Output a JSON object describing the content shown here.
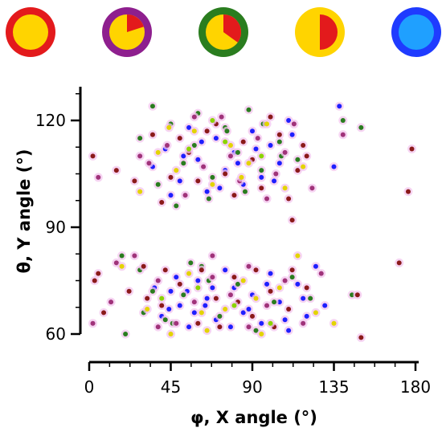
{
  "chart_data": {
    "type": "scatter",
    "xlabel": "φ, X angle (°)",
    "ylabel": "θ, Y angle (°)",
    "xlim": [
      0,
      180
    ],
    "ylim": [
      60,
      120
    ],
    "x_ticks": [
      "0",
      "45",
      "90",
      "135",
      "180"
    ],
    "y_ticks": [
      "60",
      "90",
      "120"
    ],
    "grid": false,
    "legend": {
      "placement": "top",
      "markers": [
        {
          "ring_color": "#e31a1c",
          "fill_color": "#ffd400",
          "red_fraction": 0.0
        },
        {
          "ring_color": "#8e1f8e",
          "fill_color": "#ffd400",
          "red_fraction": 0.2
        },
        {
          "ring_color": "#2a7d1f",
          "fill_color": "#ffd400",
          "red_fraction": 0.35
        },
        {
          "ring_color": "#ffd400",
          "fill_color": "#ffd400",
          "red_fraction": 0.5
        },
        {
          "ring_color": "#1f3bff",
          "fill_color": "#1fa0ff",
          "red_fraction": 0.0
        }
      ]
    },
    "series": [
      {
        "color": "#1f1fff",
        "points": [
          [
            40,
            65
          ],
          [
            45,
            72
          ],
          [
            50,
            68
          ],
          [
            55,
            62
          ],
          [
            60,
            75
          ],
          [
            65,
            70
          ],
          [
            70,
            64
          ],
          [
            75,
            78
          ],
          [
            80,
            73
          ],
          [
            85,
            66
          ],
          [
            90,
            71
          ],
          [
            95,
            63
          ],
          [
            100,
            77
          ],
          [
            105,
            69
          ],
          [
            110,
            61
          ],
          [
            115,
            74
          ],
          [
            120,
            65
          ],
          [
            125,
            79
          ],
          [
            48,
            76
          ],
          [
            58,
            66
          ],
          [
            68,
            73
          ],
          [
            78,
            62
          ],
          [
            88,
            67
          ],
          [
            98,
            74
          ],
          [
            108,
            64
          ],
          [
            118,
            70
          ],
          [
            35,
            107
          ],
          [
            42,
            112
          ],
          [
            50,
            103
          ],
          [
            55,
            118
          ],
          [
            60,
            109
          ],
          [
            65,
            100
          ],
          [
            70,
            115
          ],
          [
            75,
            106
          ],
          [
            80,
            111
          ],
          [
            85,
            102
          ],
          [
            90,
            117
          ],
          [
            95,
            104
          ],
          [
            100,
            113
          ],
          [
            105,
            108
          ],
          [
            110,
            120
          ],
          [
            138,
            124
          ],
          [
            45,
            99
          ],
          [
            52,
            110
          ],
          [
            62,
            114
          ],
          [
            72,
            101
          ],
          [
            82,
            108
          ],
          [
            92,
            112
          ],
          [
            102,
            103
          ],
          [
            112,
            116
          ],
          [
            135,
            107
          ],
          [
            130,
            68
          ],
          [
            36,
            73
          ],
          [
            44,
            67
          ],
          [
            54,
            72
          ],
          [
            64,
            68
          ]
        ]
      },
      {
        "color": "#2a7d1f",
        "points": [
          [
            20,
            60
          ],
          [
            28,
            78
          ],
          [
            35,
            72
          ],
          [
            42,
            64
          ],
          [
            52,
            71
          ],
          [
            62,
            79
          ],
          [
            72,
            65
          ],
          [
            82,
            74
          ],
          [
            92,
            61
          ],
          [
            102,
            69
          ],
          [
            112,
            76
          ],
          [
            122,
            70
          ],
          [
            145,
            71
          ],
          [
            150,
            118
          ],
          [
            140,
            120
          ],
          [
            28,
            115
          ],
          [
            35,
            124
          ],
          [
            45,
            119
          ],
          [
            52,
            108
          ],
          [
            60,
            122
          ],
          [
            68,
            104
          ],
          [
            75,
            118
          ],
          [
            82,
            111
          ],
          [
            88,
            123
          ],
          [
            95,
            106
          ],
          [
            105,
            114
          ],
          [
            115,
            109
          ],
          [
            38,
            102
          ],
          [
            48,
            96
          ],
          [
            58,
            113
          ],
          [
            66,
            98
          ],
          [
            76,
            117
          ],
          [
            86,
            100
          ],
          [
            96,
            119
          ],
          [
            106,
            110
          ],
          [
            18,
            82
          ],
          [
            30,
            66
          ],
          [
            46,
            63
          ],
          [
            56,
            80
          ],
          [
            66,
            75
          ]
        ]
      },
      {
        "color": "#8b1a1a",
        "points": [
          [
            2,
            110
          ],
          [
            5,
            77
          ],
          [
            8,
            66
          ],
          [
            15,
            106
          ],
          [
            22,
            72
          ],
          [
            30,
            79
          ],
          [
            40,
            68
          ],
          [
            50,
            74
          ],
          [
            60,
            63
          ],
          [
            70,
            70
          ],
          [
            80,
            76
          ],
          [
            90,
            65
          ],
          [
            100,
            72
          ],
          [
            110,
            67
          ],
          [
            120,
            73
          ],
          [
            176,
            100
          ],
          [
            178,
            112
          ],
          [
            118,
            113
          ],
          [
            35,
            116
          ],
          [
            45,
            104
          ],
          [
            55,
            111
          ],
          [
            65,
            117
          ],
          [
            75,
            105
          ],
          [
            85,
            114
          ],
          [
            95,
            101
          ],
          [
            105,
            116
          ],
          [
            115,
            106
          ],
          [
            40,
            97
          ],
          [
            50,
            115
          ],
          [
            60,
            103
          ],
          [
            70,
            119
          ],
          [
            80,
            99
          ],
          [
            90,
            109
          ],
          [
            100,
            121
          ],
          [
            110,
            98
          ],
          [
            120,
            110
          ],
          [
            112,
            92
          ],
          [
            150,
            59
          ],
          [
            171,
            80
          ],
          [
            148,
            71
          ],
          [
            3,
            75
          ],
          [
            25,
            103
          ],
          [
            32,
            70
          ],
          [
            42,
            78
          ],
          [
            62,
            78
          ],
          [
            72,
            62
          ],
          [
            82,
            69
          ],
          [
            92,
            78
          ],
          [
            102,
            62
          ],
          [
            112,
            78
          ]
        ]
      },
      {
        "color": "#a0337a",
        "points": [
          [
            5,
            104
          ],
          [
            12,
            69
          ],
          [
            25,
            82
          ],
          [
            38,
            75
          ],
          [
            48,
            63
          ],
          [
            58,
            69
          ],
          [
            68,
            76
          ],
          [
            78,
            71
          ],
          [
            88,
            62
          ],
          [
            98,
            68
          ],
          [
            108,
            75
          ],
          [
            118,
            63
          ],
          [
            128,
            77
          ],
          [
            33,
            108
          ],
          [
            43,
            113
          ],
          [
            53,
            99
          ],
          [
            63,
            107
          ],
          [
            73,
            121
          ],
          [
            83,
            103
          ],
          [
            93,
            115
          ],
          [
            103,
            105
          ],
          [
            113,
            119
          ],
          [
            123,
            101
          ],
          [
            140,
            116
          ],
          [
            28,
            110
          ],
          [
            58,
            121
          ],
          [
            78,
            110
          ],
          [
            98,
            98
          ],
          [
            108,
            111
          ],
          [
            2,
            63
          ],
          [
            15,
            80
          ],
          [
            38,
            62
          ],
          [
            68,
            82
          ],
          [
            88,
            79
          ]
        ]
      },
      {
        "color": "#e3d400",
        "points": [
          [
            18,
            79
          ],
          [
            32,
            67
          ],
          [
            45,
            60
          ],
          [
            55,
            77
          ],
          [
            65,
            61
          ],
          [
            75,
            67
          ],
          [
            85,
            75
          ],
          [
            95,
            60
          ],
          [
            105,
            73
          ],
          [
            115,
            82
          ],
          [
            125,
            66
          ],
          [
            135,
            63
          ],
          [
            38,
            111
          ],
          [
            48,
            106
          ],
          [
            58,
            117
          ],
          [
            68,
            102
          ],
          [
            78,
            113
          ],
          [
            88,
            108
          ],
          [
            98,
            119
          ],
          [
            108,
            101
          ],
          [
            118,
            107
          ],
          [
            28,
            100
          ],
          [
            44,
            118
          ],
          [
            84,
            104
          ],
          [
            62,
            66
          ],
          [
            92,
            70
          ]
        ]
      },
      {
        "color": "#8bd400",
        "points": [
          [
            40,
            70
          ],
          [
            60,
            73
          ],
          [
            80,
            68
          ],
          [
            100,
            63
          ],
          [
            55,
            112
          ],
          [
            75,
            114
          ],
          [
            95,
            110
          ],
          [
            68,
            120
          ]
        ]
      }
    ]
  }
}
